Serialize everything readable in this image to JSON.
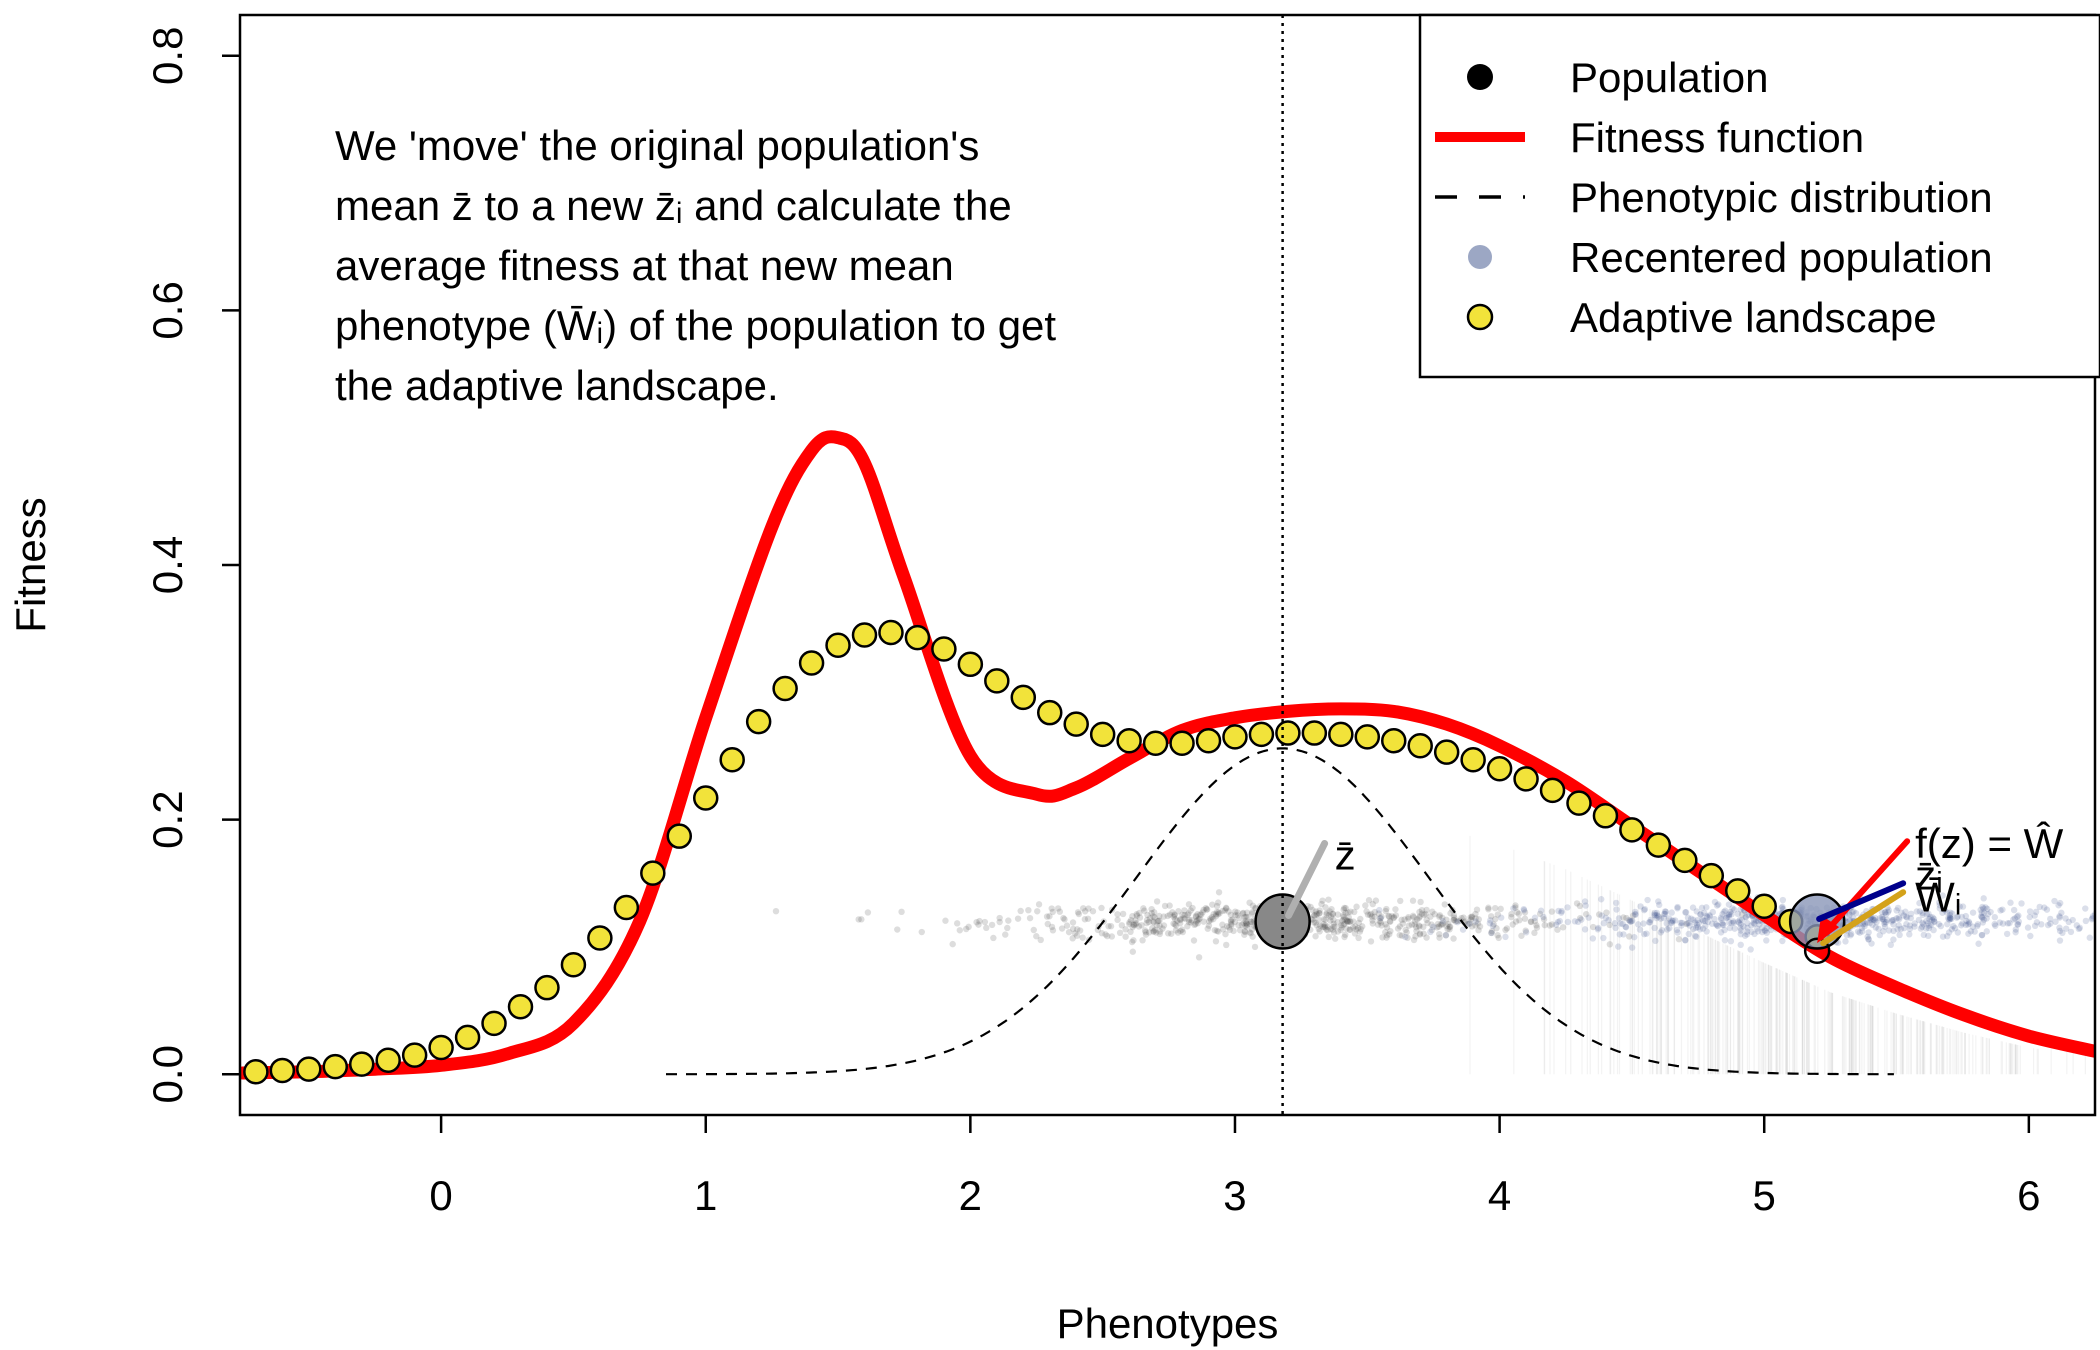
{
  "chart_data": {
    "type": "line",
    "xlabel": "Phenotypes",
    "ylabel": "Fitness",
    "xlim": [
      -0.76,
      6.25
    ],
    "ylim": [
      -0.032,
      0.832
    ],
    "x_ticks": [
      0,
      1,
      2,
      3,
      4,
      5,
      6
    ],
    "y_ticks": [
      0.0,
      0.2,
      0.4,
      0.6,
      0.8
    ],
    "x_tick_labels": [
      "0",
      "1",
      "2",
      "3",
      "4",
      "5",
      "6"
    ],
    "y_tick_labels": [
      "0.0",
      "0.2",
      "0.4",
      "0.6",
      "0.8"
    ],
    "grid": false,
    "legend_position": "top-right",
    "legend": [
      {
        "label": "Population",
        "marker": "black-dot"
      },
      {
        "label": "Fitness function",
        "marker": "red-line"
      },
      {
        "label": "Phenotypic distribution",
        "marker": "black-dashed-line"
      },
      {
        "label": "Recentered population",
        "marker": "blue-transparent-dot"
      },
      {
        "label": "Adaptive landscape",
        "marker": "yellow-dot"
      }
    ],
    "annotation_lines": [
      "We 'move' the original population's",
      "mean z̄ to a new z̄ᵢ and calculate the",
      "average fitness at that new mean",
      "phenotype (W̄ᵢ) of the population to get",
      "the adaptive landscape."
    ],
    "zbar_label": "z̄",
    "wbar_label": "W̄ᵢ",
    "zbar_i_label": "z̄ᵢ",
    "fz_label": "f(z) = Ŵ",
    "original_mean": {
      "x": 3.18,
      "y": 0.12
    },
    "recentered_mean": {
      "x": 5.2,
      "y": 0.12
    },
    "fitness_function": {
      "x": [
        -0.75,
        -0.5,
        -0.25,
        0.0,
        0.25,
        0.5,
        0.75,
        1.0,
        1.25,
        1.4,
        1.5,
        1.6,
        1.75,
        2.0,
        2.25,
        2.4,
        2.6,
        2.8,
        3.0,
        3.2,
        3.4,
        3.6,
        3.8,
        4.0,
        4.25,
        4.5,
        4.75,
        5.0,
        5.25,
        5.5,
        5.75,
        6.0,
        6.25
      ],
      "y": [
        0.001,
        0.002,
        0.004,
        0.007,
        0.016,
        0.04,
        0.12,
        0.28,
        0.43,
        0.49,
        0.5,
        0.48,
        0.39,
        0.25,
        0.22,
        0.225,
        0.248,
        0.27,
        0.28,
        0.285,
        0.287,
        0.285,
        0.275,
        0.258,
        0.23,
        0.195,
        0.16,
        0.125,
        0.092,
        0.068,
        0.047,
        0.03,
        0.018
      ],
      "color": "#ff0000"
    },
    "adaptive_landscape": {
      "x": [
        -0.7,
        -0.6,
        -0.5,
        -0.4,
        -0.3,
        -0.2,
        -0.1,
        0.0,
        0.1,
        0.2,
        0.3,
        0.4,
        0.5,
        0.6,
        0.7,
        0.8,
        0.9,
        1.0,
        1.1,
        1.2,
        1.3,
        1.4,
        1.5,
        1.6,
        1.7,
        1.8,
        1.9,
        2.0,
        2.1,
        2.2,
        2.3,
        2.4,
        2.5,
        2.6,
        2.7,
        2.8,
        2.9,
        3.0,
        3.1,
        3.2,
        3.3,
        3.4,
        3.5,
        3.6,
        3.7,
        3.8,
        3.9,
        4.0,
        4.1,
        4.2,
        4.3,
        4.4,
        4.5,
        4.6,
        4.7,
        4.8,
        4.9,
        5.0,
        5.1,
        5.2
      ],
      "y": [
        0.002,
        0.003,
        0.004,
        0.006,
        0.008,
        0.011,
        0.015,
        0.021,
        0.029,
        0.04,
        0.053,
        0.068,
        0.086,
        0.107,
        0.131,
        0.158,
        0.187,
        0.217,
        0.247,
        0.277,
        0.303,
        0.323,
        0.337,
        0.345,
        0.347,
        0.343,
        0.334,
        0.322,
        0.309,
        0.296,
        0.284,
        0.275,
        0.267,
        0.262,
        0.26,
        0.26,
        0.262,
        0.265,
        0.267,
        0.268,
        0.268,
        0.267,
        0.265,
        0.262,
        0.258,
        0.253,
        0.247,
        0.24,
        0.232,
        0.223,
        0.213,
        0.203,
        0.192,
        0.18,
        0.168,
        0.156,
        0.144,
        0.132,
        0.12,
        0.108
      ],
      "color": "#f2e33a"
    },
    "phenotypic_distribution": {
      "mean": 3.18,
      "sd": 0.55,
      "peak": 0.256,
      "x_range": [
        0.85,
        5.5
      ],
      "color": "#000000"
    },
    "population_colors": {
      "original": "#444444",
      "recentered": "#3a4f8a"
    },
    "arrow_colors": [
      "#ff0000",
      "#00008b",
      "#d4a21a",
      "#b0b0b0"
    ]
  }
}
